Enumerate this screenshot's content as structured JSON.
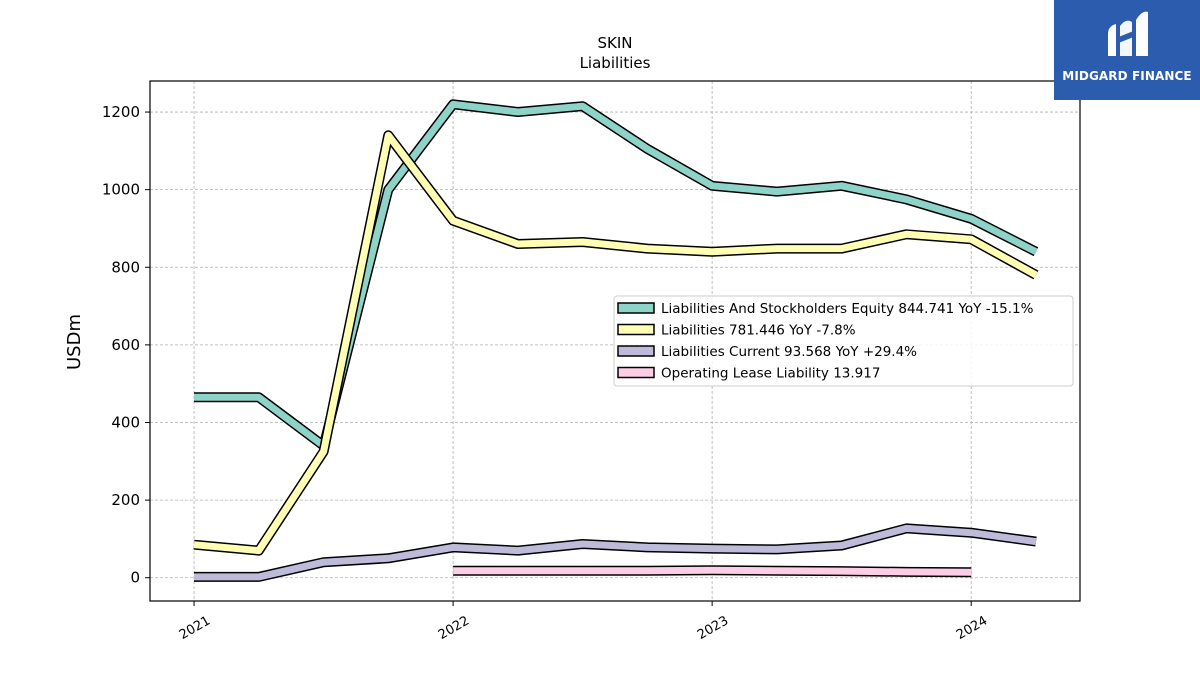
{
  "chart_data": {
    "type": "line",
    "title": "SKIN",
    "subtitle": "Liabilities",
    "xlabel": "",
    "ylabel": "USDm",
    "ylim": [
      -60,
      1280
    ],
    "xlim": [
      2020.83,
      2024.42
    ],
    "yticks": [
      0,
      200,
      400,
      600,
      800,
      1000,
      1200
    ],
    "xticks": [
      {
        "value": 2021,
        "label": "2021"
      },
      {
        "value": 2022,
        "label": "2022"
      },
      {
        "value": 2023,
        "label": "2023"
      },
      {
        "value": 2024,
        "label": "2024"
      }
    ],
    "grid": true,
    "legend_position": "center-right",
    "series": [
      {
        "name": "Liabilities And Stockholders Equity",
        "legend_label": "Liabilities And Stockholders Equity  844.741 YoY -15.1%",
        "color": "#8dd3c7",
        "x": [
          2021.0,
          2021.25,
          2021.5,
          2021.75,
          2022.0,
          2022.25,
          2022.5,
          2022.75,
          2023.0,
          2023.25,
          2023.5,
          2023.75,
          2024.0,
          2024.25
        ],
        "y": [
          465,
          465,
          340,
          1000,
          1220,
          1200,
          1215,
          1105,
          1010,
          995,
          1010,
          975,
          925,
          840
        ]
      },
      {
        "name": "Liabilities",
        "legend_label": "Liabilities  781.446 YoY -7.8%",
        "color": "#ffffb3",
        "x": [
          2021.0,
          2021.25,
          2021.5,
          2021.75,
          2022.0,
          2022.25,
          2022.5,
          2022.75,
          2023.0,
          2023.25,
          2023.5,
          2023.75,
          2024.0,
          2024.25
        ],
        "y": [
          85,
          70,
          325,
          1140,
          920,
          860,
          865,
          848,
          840,
          848,
          848,
          885,
          872,
          780
        ]
      },
      {
        "name": "Liabilities Current",
        "legend_label": "Liabilities Current  93.568 YoY +29.4%",
        "color": "#bebada",
        "x": [
          2021.0,
          2021.25,
          2021.5,
          2021.75,
          2022.0,
          2022.25,
          2022.5,
          2022.75,
          2023.0,
          2023.25,
          2023.5,
          2023.75,
          2024.0,
          2024.25
        ],
        "y": [
          2,
          2,
          40,
          50,
          78,
          70,
          87,
          78,
          75,
          73,
          83,
          127,
          116,
          93
        ]
      },
      {
        "name": "Operating Lease Liability",
        "legend_label": "Operating Lease Liability  13.917",
        "color": "#fccde5",
        "x": [
          2022.0,
          2022.25,
          2022.5,
          2022.75,
          2023.0,
          2023.25,
          2023.5,
          2023.75,
          2024.0
        ],
        "y": [
          18,
          18,
          18,
          18,
          19,
          18,
          17,
          15,
          14
        ]
      }
    ]
  },
  "branding": {
    "logo_text": "MIDGARD FINANCE",
    "logo_bg": "#2b5cad"
  }
}
